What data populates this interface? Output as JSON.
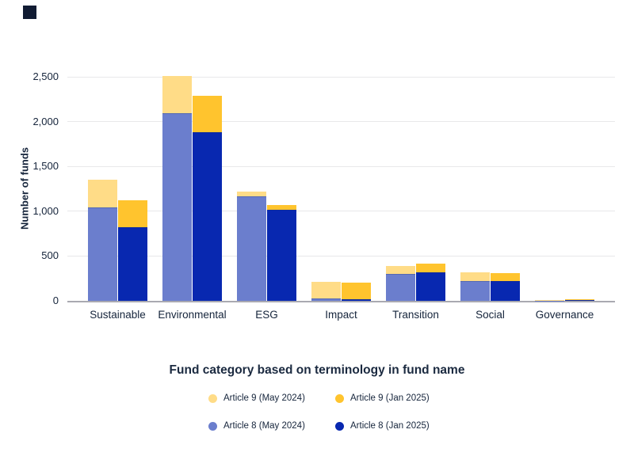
{
  "page": {
    "background": "#FFFFFF"
  },
  "brand_mark": {
    "color": "#111C33"
  },
  "chart_data": {
    "type": "bar",
    "subtype": "grouped-stacked",
    "title": "",
    "xlabel": "Fund category based on terminology in fund name",
    "ylabel": "Number of funds",
    "ylim": [
      0,
      2500
    ],
    "ytick_interval": 500,
    "ytick_labels": [
      "0",
      "500",
      "1,000",
      "1,500",
      "2,000",
      "2,500"
    ],
    "grid": "horizontal",
    "legend_position": "bottom",
    "categories": [
      "Sustainable",
      "Environmental",
      "ESG",
      "Impact",
      "Transition",
      "Social",
      "Governance"
    ],
    "bars_per_category": [
      "May 2024",
      "Jan 2025"
    ],
    "series": [
      {
        "name": "Article 9 (May 2024)",
        "color": "#FFDC87",
        "bar": "May 2024",
        "stack": "top",
        "values": [
          310,
          420,
          50,
          180,
          90,
          95,
          7
        ]
      },
      {
        "name": "Article 9 (Jan 2025)",
        "color": "#FFC42E",
        "bar": "Jan 2025",
        "stack": "top",
        "values": [
          300,
          410,
          50,
          180,
          95,
          80,
          10
        ]
      },
      {
        "name": "Article 8 (May 2024)",
        "color": "#6B7ECD",
        "bar": "May 2024",
        "stack": "bottom",
        "values": [
          1040,
          2090,
          1170,
          30,
          300,
          220,
          3
        ]
      },
      {
        "name": "Article 8 (Jan 2025)",
        "color": "#0828B0",
        "bar": "Jan 2025",
        "stack": "bottom",
        "values": [
          820,
          1880,
          1020,
          20,
          320,
          225,
          5
        ]
      }
    ]
  }
}
